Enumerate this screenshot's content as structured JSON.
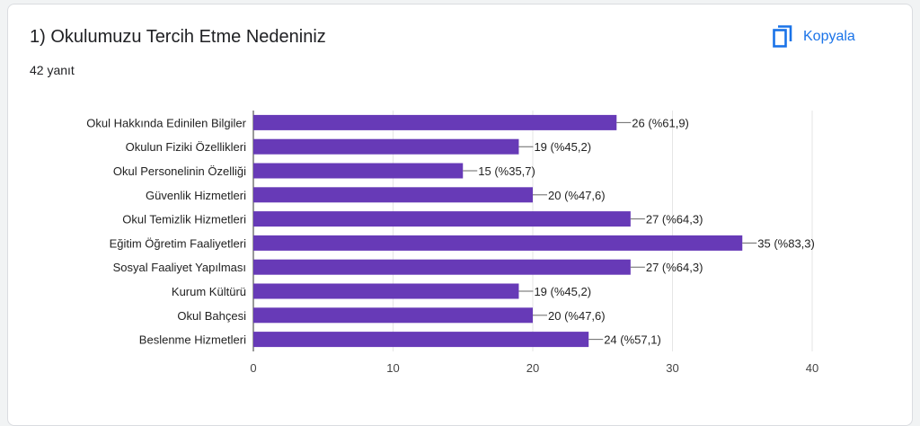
{
  "card": {
    "title": "1) Okulumuzu Tercih Etme Nedeniniz",
    "response_count": "42 yanıt",
    "copy_label": "Kopyala",
    "copy_icon": "copy-icon"
  },
  "colors": {
    "bar": "#673ab7",
    "accent": "#1a73e8"
  },
  "chart_data": {
    "type": "bar",
    "orientation": "horizontal",
    "categories": [
      "Okul Hakkında Edinilen Bilgiler",
      "Okulun Fiziki Özellikleri",
      "Okul Personelinin Özelliği",
      "Güvenlik Hizmetleri",
      "Okul Temizlik Hizmetleri",
      "Eğitim Öğretim Faaliyetleri",
      "Sosyal Faaliyet Yapılması",
      "Kurum Kültürü",
      "Okul Bahçesi",
      "Beslenme Hizmetleri"
    ],
    "values": [
      26,
      19,
      15,
      20,
      27,
      35,
      27,
      19,
      20,
      24
    ],
    "data_labels": [
      "26 (%61,9)",
      "19 (%45,2)",
      "15 (%35,7)",
      "20 (%47,6)",
      "27 (%64,3)",
      "35 (%83,3)",
      "27 (%64,3)",
      "19 (%45,2)",
      "20 (%47,6)",
      "24 (%57,1)"
    ],
    "xlim": [
      0,
      40
    ],
    "xticks": [
      "0",
      "10",
      "20",
      "30",
      "40"
    ],
    "grid": true
  }
}
